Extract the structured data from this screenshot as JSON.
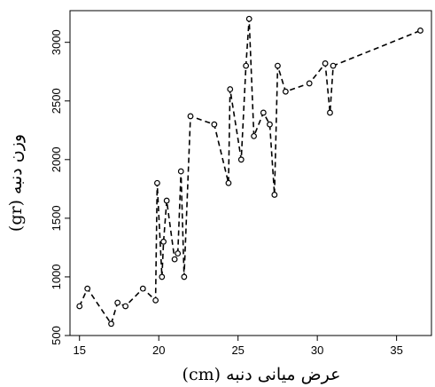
{
  "chart_data": {
    "type": "line",
    "title": "",
    "xlabel": "عرض میانی دنبه (cm)",
    "ylabel": "وزن دنبه (gr)",
    "xlim": [
      14.4,
      37.2
    ],
    "ylim": [
      500,
      3270
    ],
    "x_ticks": [
      15,
      20,
      25,
      30,
      35
    ],
    "y_ticks": [
      500,
      1000,
      1500,
      2000,
      2500,
      3000
    ],
    "line_style": "dashed",
    "marker": "open-circle",
    "grid": false,
    "legend": "none",
    "color": "#000000",
    "series": [
      {
        "x": [
          15.0,
          15.5,
          17.0,
          17.4,
          17.9,
          19.0,
          19.8,
          19.9,
          20.2,
          20.3,
          20.5,
          21.0,
          21.2,
          21.4,
          21.6,
          22.0,
          23.5,
          24.4,
          24.5,
          25.2,
          25.5,
          25.7,
          26.0,
          26.6,
          27.0,
          27.3,
          27.5,
          28.0,
          29.5,
          30.5,
          30.8,
          31.0,
          36.5
        ],
        "y": [
          750,
          900,
          600,
          780,
          750,
          900,
          800,
          1800,
          1000,
          1300,
          1650,
          1150,
          1200,
          1900,
          1000,
          2370,
          2300,
          1800,
          2600,
          2000,
          2800,
          3200,
          2200,
          2400,
          2300,
          1700,
          2800,
          2580,
          2650,
          2820,
          2400,
          2800,
          3100
        ]
      }
    ]
  }
}
